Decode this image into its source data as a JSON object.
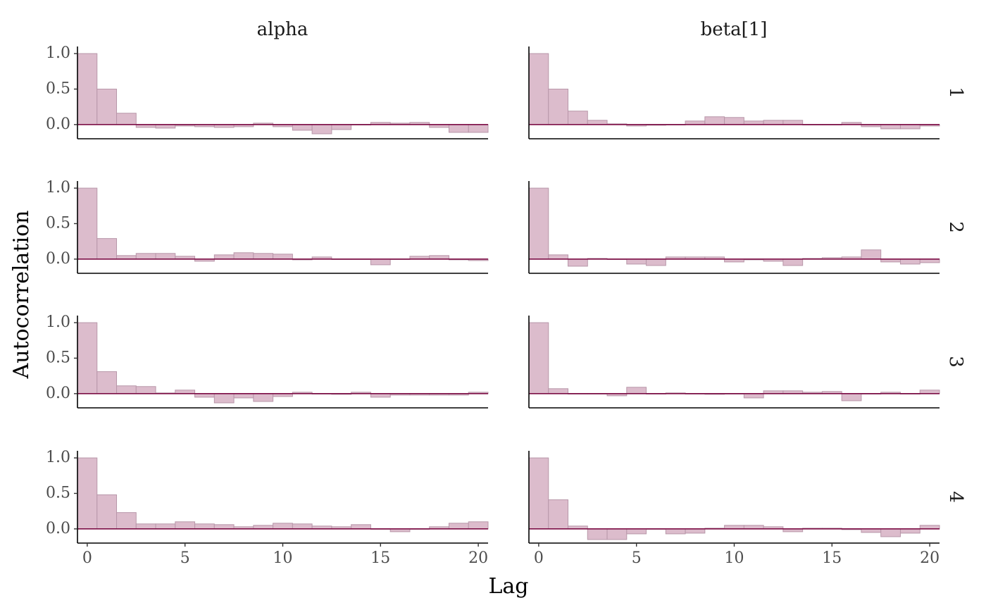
{
  "chart_data": {
    "type": "bar",
    "xlabel": "Lag",
    "ylabel": "Autocorrelation",
    "xlim": [
      -0.5,
      20.5
    ],
    "ylim": [
      -0.2,
      1.1
    ],
    "xticks": [
      "0",
      "5",
      "10",
      "15",
      "20"
    ],
    "yticks": [
      "0.0",
      "0.5",
      "1.0"
    ],
    "params": [
      "alpha",
      "beta[1]"
    ],
    "chains": [
      "1",
      "2",
      "3",
      "4"
    ],
    "lags": [
      0,
      1,
      2,
      3,
      4,
      5,
      6,
      7,
      8,
      9,
      10,
      11,
      12,
      13,
      14,
      15,
      16,
      17,
      18,
      19,
      20
    ],
    "colors": {
      "bar_fill": "#dcbccc",
      "bar_edge": "#b897a9",
      "zero_line": "#7c0d45"
    },
    "panels": [
      {
        "param": "alpha",
        "chain": "1",
        "values": [
          1.0,
          0.5,
          0.16,
          -0.04,
          -0.05,
          -0.02,
          -0.03,
          -0.04,
          -0.03,
          0.02,
          -0.03,
          -0.08,
          -0.13,
          -0.07,
          0.0,
          0.03,
          0.02,
          0.03,
          -0.04,
          -0.11,
          -0.11
        ]
      },
      {
        "param": "beta[1]",
        "chain": "1",
        "values": [
          1.0,
          0.5,
          0.19,
          0.06,
          0.01,
          -0.02,
          -0.01,
          0.0,
          0.05,
          0.11,
          0.1,
          0.05,
          0.06,
          0.06,
          0.0,
          0.0,
          0.03,
          -0.03,
          -0.06,
          -0.06,
          -0.02
        ]
      },
      {
        "param": "alpha",
        "chain": "2",
        "values": [
          1.0,
          0.29,
          0.05,
          0.08,
          0.08,
          0.04,
          -0.03,
          0.06,
          0.09,
          0.08,
          0.07,
          -0.01,
          0.03,
          0.0,
          0.0,
          -0.08,
          0.0,
          0.04,
          0.05,
          -0.01,
          -0.02
        ]
      },
      {
        "param": "beta[1]",
        "chain": "2",
        "values": [
          1.0,
          0.06,
          -0.1,
          0.01,
          0.0,
          -0.07,
          -0.09,
          0.03,
          0.03,
          0.03,
          -0.04,
          -0.01,
          -0.03,
          -0.09,
          0.01,
          0.02,
          0.03,
          0.13,
          -0.04,
          -0.07,
          -0.05
        ]
      },
      {
        "param": "alpha",
        "chain": "3",
        "values": [
          1.0,
          0.31,
          0.11,
          0.1,
          0.01,
          0.05,
          -0.05,
          -0.13,
          -0.06,
          -0.11,
          -0.04,
          0.02,
          0.0,
          -0.01,
          0.02,
          -0.05,
          -0.02,
          -0.02,
          -0.02,
          -0.02,
          0.02
        ]
      },
      {
        "param": "beta[1]",
        "chain": "3",
        "values": [
          1.0,
          0.07,
          0.0,
          0.0,
          -0.03,
          0.09,
          0.0,
          0.01,
          0.0,
          -0.01,
          0.0,
          -0.06,
          0.04,
          0.04,
          0.02,
          0.03,
          -0.1,
          0.0,
          0.02,
          0.0,
          0.05
        ]
      },
      {
        "param": "alpha",
        "chain": "4",
        "values": [
          1.0,
          0.48,
          0.23,
          0.07,
          0.07,
          0.1,
          0.07,
          0.06,
          0.03,
          0.05,
          0.08,
          0.07,
          0.04,
          0.03,
          0.06,
          0.0,
          -0.04,
          0.0,
          0.03,
          0.08,
          0.1
        ]
      },
      {
        "param": "beta[1]",
        "chain": "4",
        "values": [
          1.0,
          0.41,
          0.04,
          -0.15,
          -0.15,
          -0.07,
          0.0,
          -0.07,
          -0.06,
          0.01,
          0.05,
          0.05,
          0.03,
          -0.04,
          0.01,
          0.01,
          -0.01,
          -0.05,
          -0.11,
          -0.06,
          0.05
        ]
      }
    ]
  }
}
